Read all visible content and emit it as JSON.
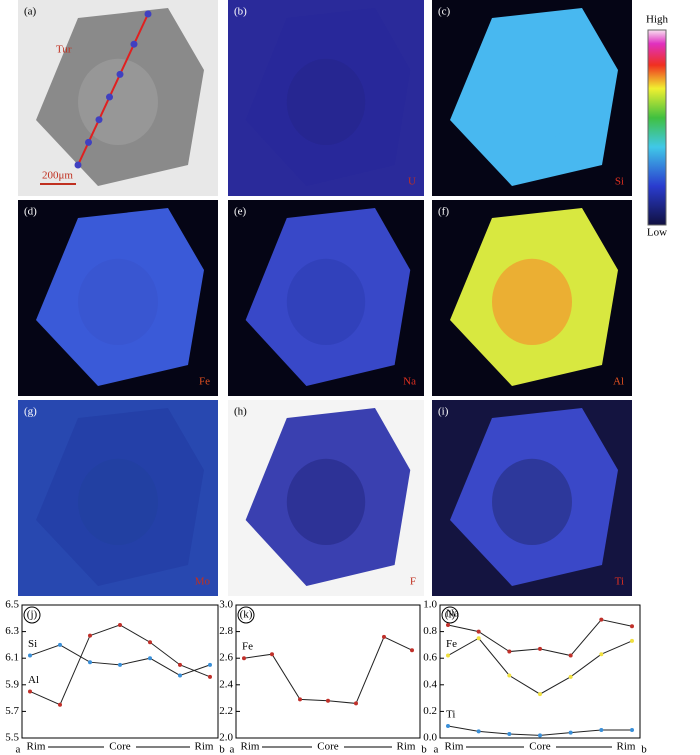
{
  "panels": [
    {
      "label": "(a)",
      "element": "Tur",
      "scale": "200μm"
    },
    {
      "label": "(b)",
      "element": "U"
    },
    {
      "label": "(c)",
      "element": "Si"
    },
    {
      "label": "(d)",
      "element": "Fe"
    },
    {
      "label": "(e)",
      "element": "Na"
    },
    {
      "label": "(f)",
      "element": "Al"
    },
    {
      "label": "(g)",
      "element": "Mo"
    },
    {
      "label": "(h)",
      "element": "F"
    },
    {
      "label": "(i)",
      "element": "Ti"
    }
  ],
  "colorbar": {
    "high": "High",
    "low": "Low"
  },
  "chart_data": [
    {
      "type": "line",
      "label": "(j)",
      "ylim": [
        5.5,
        6.5
      ],
      "yticks": [
        5.5,
        5.7,
        5.9,
        6.1,
        6.3,
        6.5
      ],
      "x_labels": [
        "a",
        "Rim",
        "Core",
        "Rim",
        "b"
      ],
      "series": [
        {
          "name": "Si",
          "color": "#3a8fd8",
          "values": [
            6.12,
            6.2,
            6.07,
            6.05,
            6.1,
            5.97,
            6.05
          ]
        },
        {
          "name": "Al",
          "color": "#c0302a",
          "values": [
            5.85,
            5.75,
            6.27,
            6.35,
            6.22,
            6.05,
            5.96
          ]
        }
      ]
    },
    {
      "type": "line",
      "label": "(k)",
      "ylim": [
        2.0,
        3.0
      ],
      "yticks": [
        {
          "value": 2.0,
          "label": "2.0"
        },
        2.2,
        2.4,
        2.6,
        2.8,
        {
          "value": 3.0,
          "label": "3.0"
        }
      ],
      "x_labels": [
        "a",
        "Rim",
        "Core",
        "Rim",
        "b"
      ],
      "series": [
        {
          "name": "Fe",
          "color": "#c0302a",
          "values": [
            2.6,
            2.63,
            2.29,
            2.28,
            2.26,
            2.76,
            2.66
          ]
        }
      ]
    },
    {
      "type": "line",
      "label": "(l)",
      "ylim": [
        0.0,
        1.0
      ],
      "yticks": [
        {
          "value": 0.0,
          "label": "0.0"
        },
        0.2,
        0.4,
        0.6,
        0.8,
        {
          "value": 1.0,
          "label": "1.0"
        }
      ],
      "x_labels": [
        "a",
        "Rim",
        "Core",
        "Rim",
        "b"
      ],
      "series": [
        {
          "name": "Na",
          "color": "#c0302a",
          "values": [
            0.85,
            0.8,
            0.65,
            0.67,
            0.62,
            0.89,
            0.84
          ]
        },
        {
          "name": "Fe",
          "color": "#f0e040",
          "values": [
            0.62,
            0.75,
            0.47,
            0.33,
            0.46,
            0.63,
            0.73
          ]
        },
        {
          "name": "Ti",
          "color": "#3a8fd8",
          "values": [
            0.09,
            0.05,
            0.03,
            0.02,
            0.04,
            0.06,
            0.06
          ]
        }
      ]
    }
  ]
}
